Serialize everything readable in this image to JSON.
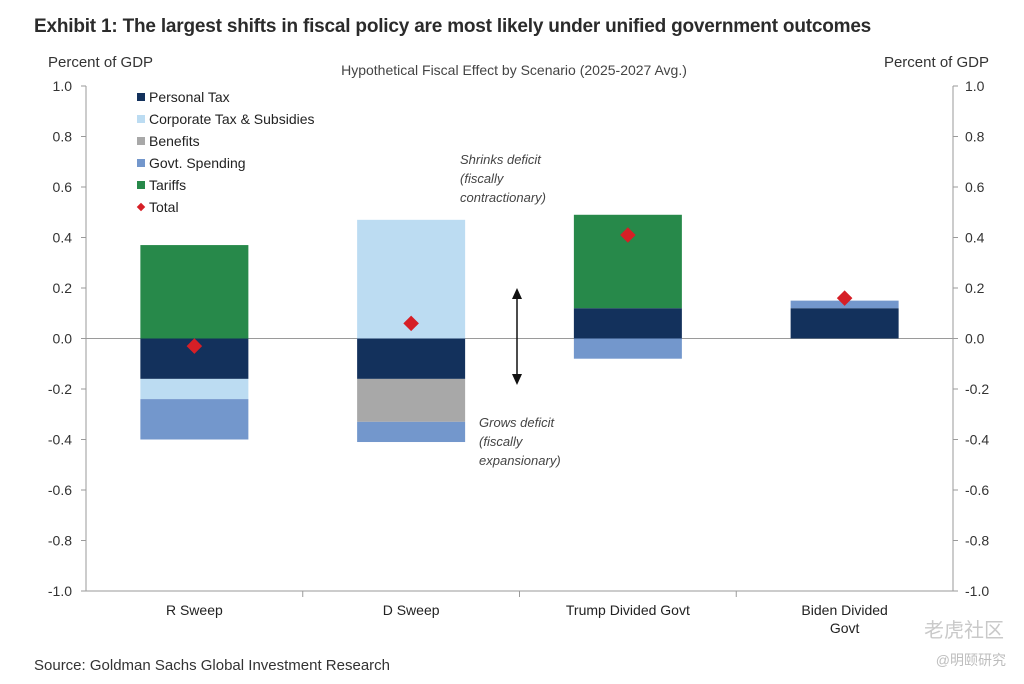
{
  "header": {
    "title": "Exhibit 1: The largest shifts in fiscal policy are most likely under unified government outcomes"
  },
  "footer": {
    "source": "Source: Goldman Sachs Global Investment Research"
  },
  "watermarks": {
    "main": "老虎社区",
    "sub": "@明颐研究"
  },
  "colors": {
    "personal_tax": "#13315c",
    "corporate_tax": "#bcdcf2",
    "benefits": "#a8a8a8",
    "govt_spending": "#7397cc",
    "tariffs": "#27894a",
    "total": "#d61f26",
    "axis": "#9a9a9a"
  },
  "chart_data": {
    "type": "bar",
    "stacked": true,
    "subtitle": "Hypothetical Fiscal Effect by Scenario (2025-2027 Avg.)",
    "ylabel_left": "Percent of GDP",
    "ylabel_right": "Percent of GDP",
    "ylim": [
      -1.0,
      1.0
    ],
    "yticks": [
      "1.0",
      "0.8",
      "0.6",
      "0.4",
      "0.2",
      "0.0",
      "-0.2",
      "-0.4",
      "-0.6",
      "-0.8",
      "-1.0"
    ],
    "ytick_values": [
      1.0,
      0.8,
      0.6,
      0.4,
      0.2,
      0.0,
      -0.2,
      -0.4,
      -0.6,
      -0.8,
      -1.0
    ],
    "categories": [
      "R Sweep",
      "D Sweep",
      "Trump Divided Govt",
      "Biden Divided Govt"
    ],
    "series": [
      {
        "name": "Personal Tax",
        "key": "personal_tax",
        "values": [
          -0.16,
          -0.16,
          0.12,
          0.12
        ]
      },
      {
        "name": "Corporate Tax & Subsidies",
        "key": "corporate_tax",
        "values": [
          -0.08,
          0.47,
          0.0,
          0.0
        ]
      },
      {
        "name": "Benefits",
        "key": "benefits",
        "values": [
          0.0,
          -0.17,
          0.0,
          0.0
        ]
      },
      {
        "name": "Govt. Spending",
        "key": "govt_spending",
        "values": [
          -0.16,
          -0.08,
          -0.08,
          0.03
        ]
      },
      {
        "name": "Tariffs",
        "key": "tariffs",
        "values": [
          0.37,
          0.0,
          0.37,
          0.0
        ]
      }
    ],
    "total": {
      "name": "Total",
      "values": [
        -0.03,
        0.06,
        0.41,
        0.16
      ]
    },
    "legend_position": "top-left",
    "annotations": {
      "shrinks": [
        "Shrinks deficit",
        "(fiscally",
        "contractionary)"
      ],
      "grows": [
        "Grows deficit",
        "(fiscally",
        "expansionary)"
      ]
    },
    "grid": false
  }
}
